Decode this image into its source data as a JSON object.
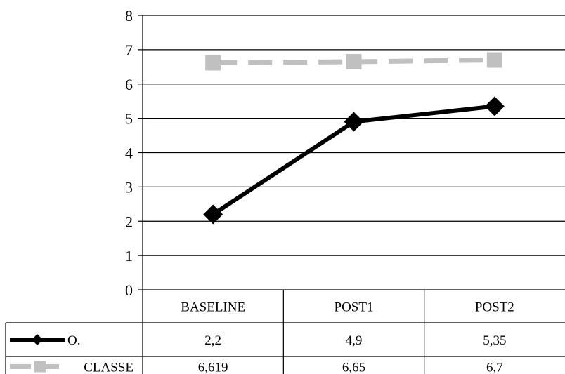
{
  "chart_data": {
    "type": "line",
    "categories": [
      "BASELINE",
      "POST1",
      "POST2"
    ],
    "ylim": [
      0,
      8
    ],
    "yticks": [
      "0",
      "1",
      "2",
      "3",
      "4",
      "5",
      "6",
      "7",
      "8"
    ],
    "grid": true,
    "legend": "data-table",
    "series": [
      {
        "name": "O.",
        "values": [
          2.2,
          4.9,
          5.35
        ],
        "labels": [
          "2,2",
          "4,9",
          "5,35"
        ],
        "color": "#000000",
        "marker": "diamond",
        "dash": "solid"
      },
      {
        "name": "CLASSE",
        "values": [
          6.619,
          6.65,
          6.7
        ],
        "labels": [
          "6,619",
          "6,65",
          "6,7"
        ],
        "color": "#c0c0c0",
        "marker": "square",
        "dash": "dashed"
      }
    ]
  }
}
